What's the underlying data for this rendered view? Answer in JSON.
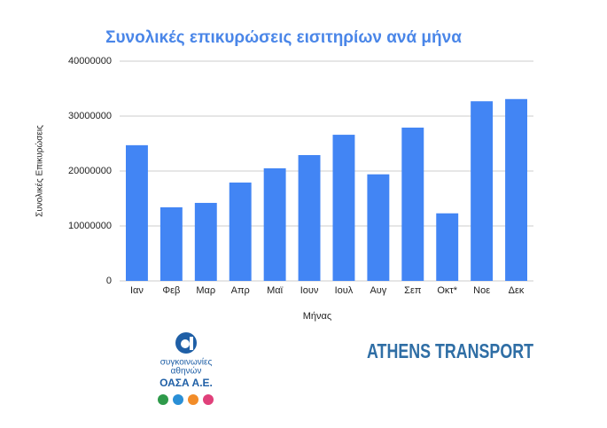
{
  "chart_data": {
    "type": "bar",
    "title": "Συνολικές επικυρώσεις εισιτηρίων ανά μήνα",
    "x_label": "Μήνας",
    "y_label": "Συνολικές Επικυρώσεις",
    "categories": [
      "Ιαν",
      "Φεβ",
      "Μαρ",
      "Απρ",
      "Μαϊ",
      "Ιουν",
      "Ιουλ",
      "Αυγ",
      "Σεπ",
      "Οκτ*",
      "Νοε",
      "Δεκ"
    ],
    "values": [
      24700000,
      13400000,
      14200000,
      17900000,
      20500000,
      22900000,
      26600000,
      19400000,
      27900000,
      12300000,
      32700000,
      33100000
    ],
    "color": "#4285f4",
    "ylim": [
      0,
      40000000
    ],
    "yticks": [
      0,
      10000000,
      20000000,
      30000000,
      40000000
    ],
    "grid": true
  },
  "logos": {
    "oasa_line1": "συγκοινωνίες",
    "oasa_line2": "αθηνών",
    "oasa_name": "ΟΑΣΑ Α.Ε.",
    "athens_transport": "ATHENS TRANSPORT"
  }
}
